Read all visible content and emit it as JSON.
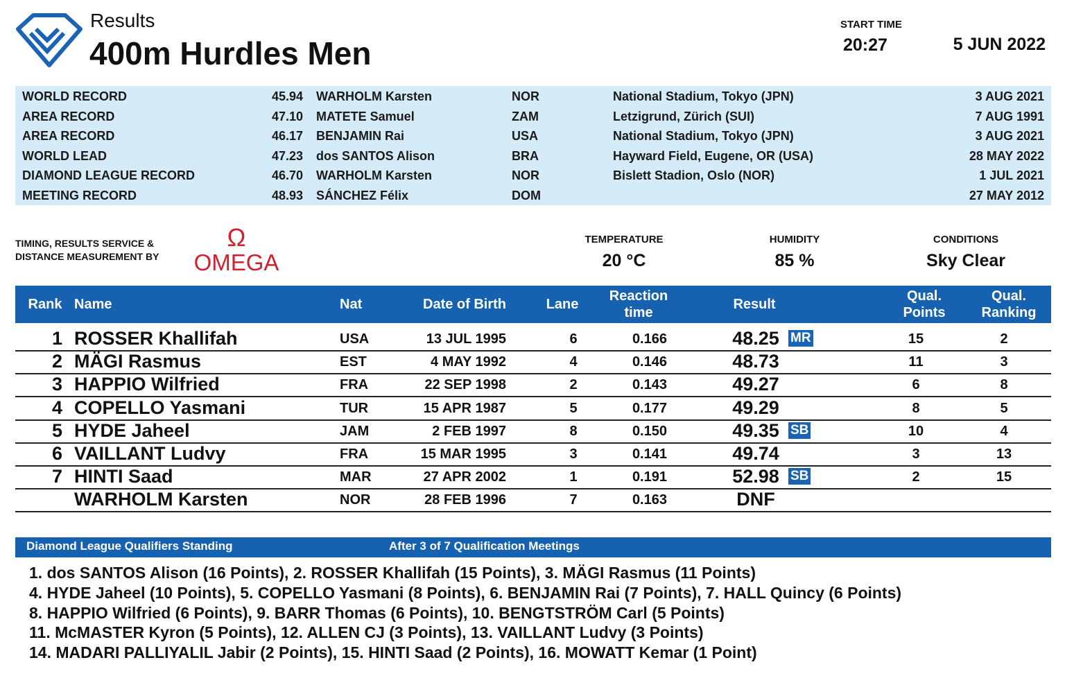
{
  "header": {
    "label": "Results",
    "title": "400m Hurdles Men",
    "start_time_label": "START TIME",
    "start_time": "20:27",
    "date": "5 JUN 2022"
  },
  "records": [
    [
      "WORLD RECORD",
      "45.94",
      "WARHOLM Karsten",
      "NOR",
      "National Stadium, Tokyo (JPN)",
      "3 AUG 2021"
    ],
    [
      "AREA RECORD",
      "47.10",
      "MATETE Samuel",
      "ZAM",
      "Letzigrund, Zürich (SUI)",
      "7 AUG 1991"
    ],
    [
      "AREA RECORD",
      "46.17",
      "BENJAMIN Rai",
      "USA",
      "National Stadium, Tokyo (JPN)",
      "3 AUG 2021"
    ],
    [
      "WORLD LEAD",
      "47.23",
      "dos SANTOS Alison",
      "BRA",
      "Hayward Field, Eugene, OR (USA)",
      "28 MAY 2022"
    ],
    [
      "DIAMOND LEAGUE RECORD",
      "46.70",
      "WARHOLM Karsten",
      "NOR",
      "Bislett Stadion, Oslo (NOR)",
      "1 JUL 2021"
    ],
    [
      "MEETING RECORD",
      "48.93",
      "SÁNCHEZ Félix",
      "DOM",
      null,
      "27 MAY 2012"
    ]
  ],
  "timing": {
    "label": [
      "TIMING, RESULTS SERVICE &",
      "DISTANCE MEASUREMENT BY"
    ],
    "logo_symbol": "Ω",
    "logo_text": "OMEGA"
  },
  "weather": [
    {
      "label": "TEMPERATURE",
      "value": "20 °C"
    },
    {
      "label": "HUMIDITY",
      "value": "85 %"
    },
    {
      "label": "CONDITIONS",
      "value": "Sky Clear"
    }
  ],
  "results": {
    "columns": [
      "Rank",
      "Name",
      "Nat",
      "Date of Birth",
      "Lane",
      "Reaction time",
      "Result",
      "Qual. Points",
      "Qual. Ranking"
    ],
    "rows": [
      [
        "1",
        "ROSSER Khallifah",
        "USA",
        "13 JUL 1995",
        "6",
        "0.166",
        "48.25",
        "MR",
        "15",
        "2"
      ],
      [
        "2",
        "MÄGI Rasmus",
        "EST",
        "4 MAY 1992",
        "4",
        "0.146",
        "48.73",
        null,
        "11",
        "3"
      ],
      [
        "3",
        "HAPPIO Wilfried",
        "FRA",
        "22 SEP 1998",
        "2",
        "0.143",
        "49.27",
        null,
        "6",
        "8"
      ],
      [
        "4",
        "COPELLO Yasmani",
        "TUR",
        "15 APR 1987",
        "5",
        "0.177",
        "49.29",
        null,
        "8",
        "5"
      ],
      [
        "5",
        "HYDE Jaheel",
        "JAM",
        "2 FEB 1997",
        "8",
        "0.150",
        "49.35",
        "SB",
        "10",
        "4"
      ],
      [
        "6",
        "VAILLANT Ludvy",
        "FRA",
        "15 MAR 1995",
        "3",
        "0.141",
        "49.74",
        null,
        "3",
        "13"
      ],
      [
        "7",
        "HINTI Saad",
        "MAR",
        "27 APR 2002",
        "1",
        "0.191",
        "52.98",
        "SB",
        "2",
        "15"
      ],
      [
        null,
        "WARHOLM Karsten",
        "NOR",
        "28 FEB 1996",
        "7",
        "0.163",
        "DNF",
        null,
        null,
        null
      ]
    ]
  },
  "standing": {
    "title": "Diamond League Qualifiers Standing",
    "subtitle": "After 3 of 7 Qualification Meetings",
    "lines": [
      "1. dos SANTOS Alison (16 Points), 2. ROSSER Khallifah (15 Points), 3. MÄGI Rasmus (11 Points)",
      "4. HYDE Jaheel (10 Points), 5. COPELLO Yasmani (8 Points), 6. BENJAMIN Rai (7 Points), 7. HALL Quincy (6 Points)",
      "8. HAPPIO Wilfried (6 Points), 9. BARR Thomas (6 Points), 10. BENGTSTRÖM Carl (5 Points)",
      "11. McMASTER Kyron (5 Points), 12. ALLEN CJ (3 Points), 13. VAILLANT Ludvy (3 Points)",
      "14. MADARI PALLIYALIL Jabir (2 Points), 15. HINTI Saad (2 Points), 16. MOWATT Kemar (1 Point)"
    ]
  }
}
